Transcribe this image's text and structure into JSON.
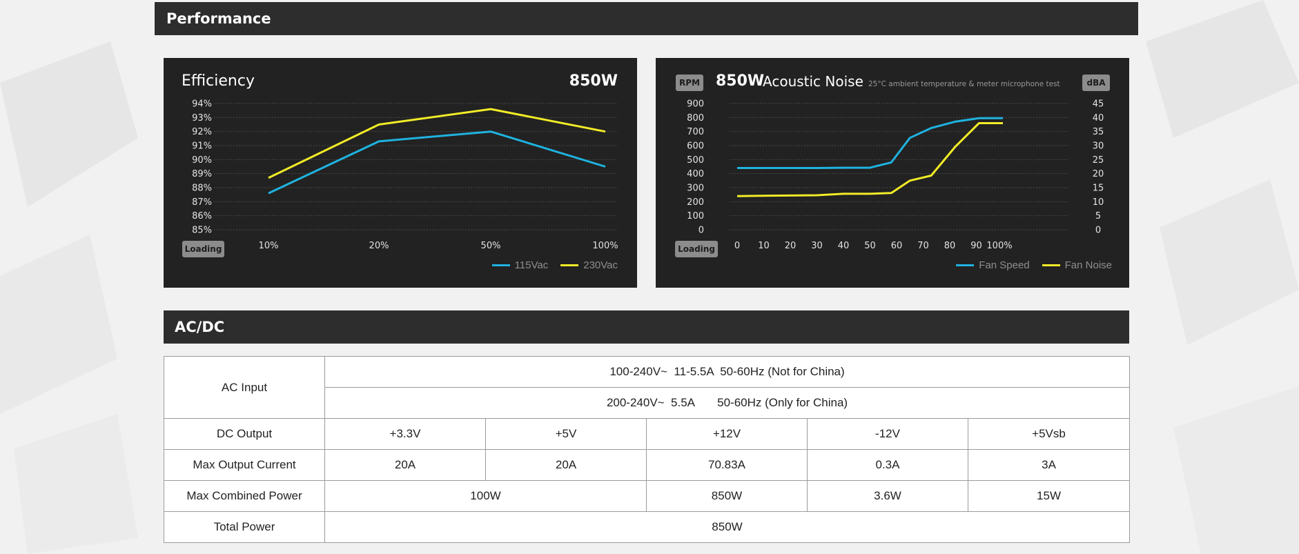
{
  "header": {
    "performance_title": "Performance",
    "acdc_title": "AC/DC"
  },
  "efficiency_panel": {
    "title": "Efficiency",
    "wattage": "850W",
    "loading_badge": "Loading",
    "legend": [
      {
        "label": "115Vac",
        "color": "#1fb3e0"
      },
      {
        "label": "230Vac",
        "color": "#f2ec27"
      }
    ]
  },
  "noise_panel": {
    "rpm_badge": "RPM",
    "dba_badge": "dBA",
    "wattage": "850W",
    "title": "Acoustic Noise",
    "subtitle": "25°C ambient temperature & meter microphone test",
    "loading_badge": "Loading",
    "legend": [
      {
        "label": "Fan Speed",
        "color": "#1fb3e0"
      },
      {
        "label": "Fan Noise",
        "color": "#f2ec27"
      }
    ]
  },
  "chart_data": [
    {
      "type": "line",
      "title": "Efficiency",
      "categories": [
        "10%",
        "20%",
        "50%",
        "100%"
      ],
      "yticks": [
        "85%",
        "86%",
        "87%",
        "88%",
        "89%",
        "90%",
        "91%",
        "92%",
        "93%",
        "94%"
      ],
      "ylim": [
        85,
        94
      ],
      "grid": true,
      "legend_position": "bottom-right",
      "series": [
        {
          "name": "115Vac",
          "values": [
            87.6,
            91.3,
            92.0,
            89.5
          ]
        },
        {
          "name": "230Vac",
          "values": [
            88.7,
            92.5,
            93.6,
            92.0
          ]
        }
      ]
    },
    {
      "type": "line",
      "title": "Acoustic Noise",
      "xticks": [
        "0",
        "10",
        "20",
        "30",
        "40",
        "50",
        "60",
        "70",
        "80",
        "90",
        "100%"
      ],
      "x": [
        0,
        10,
        20,
        30,
        40,
        50,
        58,
        65,
        73,
        82,
        91,
        100
      ],
      "y_left_label": "RPM",
      "y_left_ticks": [
        "0",
        "100",
        "200",
        "300",
        "400",
        "500",
        "600",
        "700",
        "800",
        "900"
      ],
      "y_left_lim": [
        0,
        900
      ],
      "y_right_label": "dBA",
      "y_right_ticks": [
        "0",
        "5",
        "10",
        "15",
        "20",
        "25",
        "30",
        "35",
        "40",
        "45"
      ],
      "y_right_lim": [
        0,
        45
      ],
      "grid": true,
      "legend_position": "bottom-right",
      "series": [
        {
          "name": "Fan Speed",
          "axis": "left",
          "values": [
            440,
            440,
            440,
            440,
            442,
            442,
            480,
            655,
            725,
            770,
            795,
            795
          ]
        },
        {
          "name": "Fan Noise",
          "axis": "right",
          "values": [
            12.0,
            12.1,
            12.2,
            12.3,
            12.8,
            12.8,
            13.1,
            17.5,
            19.3,
            29.5,
            38.0,
            38.0
          ]
        }
      ]
    }
  ],
  "table": {
    "ac_input": {
      "label": "AC Input",
      "line1": "100-240V~  11-5.5A  50-60Hz (Not for China)",
      "line2": "200-240V~  5.5A       50-60Hz (Only for China)"
    },
    "dc_output": {
      "label": "DC Output",
      "values": [
        "+3.3V",
        "+5V",
        "+12V",
        "-12V",
        "+5Vsb"
      ]
    },
    "max_output_current": {
      "label": "Max Output Current",
      "values": [
        "20A",
        "20A",
        "70.83A",
        "0.3A",
        "3A"
      ]
    },
    "max_combined_power": {
      "label": "Max Combined Power",
      "values": [
        "100W",
        "850W",
        "3.6W",
        "15W"
      ]
    },
    "total_power": {
      "label": "Total Power",
      "value": "850W"
    }
  }
}
